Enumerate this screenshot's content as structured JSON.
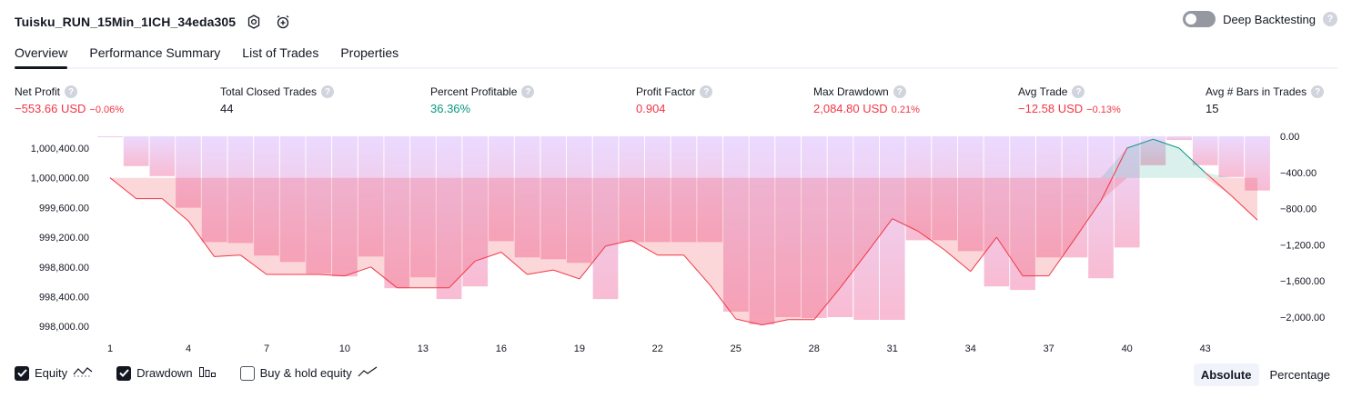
{
  "header": {
    "strategy_name": "Tuisku_RUN_15Min_1ICH_34eda305",
    "settings_icon": "gear-icon",
    "alert_icon": "alarm-clock-plus-icon",
    "deep_backtesting_label": "Deep Backtesting",
    "deep_backtesting_enabled": false,
    "help_glyph": "?"
  },
  "tabs": [
    {
      "label": "Overview",
      "active": true
    },
    {
      "label": "Performance Summary",
      "active": false
    },
    {
      "label": "List of Trades",
      "active": false
    },
    {
      "label": "Properties",
      "active": false
    }
  ],
  "stats": [
    {
      "label": "Net Profit",
      "value": "−553.66 USD",
      "pct": "−0.06%",
      "tone": "neg"
    },
    {
      "label": "Total Closed Trades",
      "value": "44",
      "pct": "",
      "tone": "none"
    },
    {
      "label": "Percent Profitable",
      "value": "36.36%",
      "pct": "",
      "tone": "pos"
    },
    {
      "label": "Profit Factor",
      "value": "0.904",
      "pct": "",
      "tone": "neg"
    },
    {
      "label": "Max Drawdown",
      "value": "2,084.80 USD",
      "pct": "0.21%",
      "tone": "neg"
    },
    {
      "label": "Avg Trade",
      "value": "−12.58 USD",
      "pct": "−0.13%",
      "tone": "neg"
    },
    {
      "label": "Avg # Bars in Trades",
      "value": "15",
      "pct": "",
      "tone": "none"
    }
  ],
  "chart_data": {
    "type": "line",
    "x_ticks": [
      "1",
      "4",
      "7",
      "10",
      "13",
      "16",
      "19",
      "22",
      "25",
      "28",
      "31",
      "34",
      "37",
      "40",
      "43"
    ],
    "y_left": {
      "ticks": [
        "1,000,400.00",
        "1,000,000.00",
        "999,600.00",
        "999,200.00",
        "998,800.00",
        "998,400.00",
        "998,000.00"
      ],
      "range": [
        997,
        840,
        1000600
      ]
    },
    "y_right": {
      "ticks": [
        "0.00",
        "−400.00",
        "−800.00",
        "−1,200.00",
        "−1,600.00",
        "−2,000.00"
      ],
      "range": [
        -2200,
        0
      ]
    },
    "equity_baseline": 1000000,
    "series": [
      {
        "name": "Equity",
        "color": "#f23645",
        "x": [
          1,
          2,
          3,
          4,
          5,
          6,
          7,
          8,
          9,
          10,
          11,
          12,
          13,
          14,
          15,
          16,
          17,
          18,
          19,
          20,
          21,
          22,
          23,
          24,
          25,
          26,
          27,
          28,
          29,
          30,
          31,
          32,
          33,
          34,
          35,
          36,
          37,
          38,
          39,
          40,
          41,
          42,
          43,
          44,
          45
        ],
        "values": [
          1000000,
          999720,
          999720,
          999420,
          998940,
          998960,
          998700,
          998700,
          998700,
          998680,
          998800,
          998520,
          998520,
          998520,
          998880,
          999000,
          998700,
          998760,
          998640,
          999080,
          999160,
          998960,
          998960,
          998560,
          998100,
          998020,
          998090,
          998090,
          998520,
          998980,
          999450,
          999280,
          999030,
          998740,
          999200,
          998680,
          998680,
          999180,
          999690,
          1000400,
          1000520,
          1000400,
          1000070,
          999760,
          999430
        ]
      },
      {
        "name": "Drawdown",
        "color": "#c9a8ff",
        "x": [
          1,
          2,
          3,
          4,
          5,
          6,
          7,
          8,
          9,
          10,
          11,
          12,
          13,
          14,
          15,
          16,
          17,
          18,
          19,
          20,
          21,
          22,
          23,
          24,
          25,
          26,
          27,
          28,
          29,
          30,
          31,
          32,
          33,
          34,
          35,
          36,
          37,
          38,
          39,
          40,
          41,
          42,
          43,
          44,
          45
        ],
        "values": [
          0,
          -330,
          -440,
          -790,
          -1170,
          -1180,
          -1320,
          -1390,
          -1520,
          -1550,
          -1330,
          -1680,
          -1560,
          -1800,
          -1660,
          -1160,
          -1340,
          -1360,
          -1400,
          -1800,
          -1170,
          -1170,
          -1170,
          -1170,
          -1940,
          -2080,
          -2000,
          -2010,
          -2000,
          -2030,
          -2030,
          -1150,
          -1150,
          -1270,
          -1660,
          -1700,
          -1340,
          -1340,
          -1570,
          -1230,
          -320,
          -40,
          -320,
          -450,
          -600
        ]
      }
    ]
  },
  "legend": [
    {
      "label": "Equity",
      "checked": true,
      "icon": "equity-line-icon"
    },
    {
      "label": "Drawdown",
      "checked": true,
      "icon": "drawdown-bars-icon"
    },
    {
      "label": "Buy & hold equity",
      "checked": false,
      "icon": "buy-hold-line-icon"
    }
  ],
  "mode_buttons": [
    {
      "label": "Absolute",
      "active": true
    },
    {
      "label": "Percentage",
      "active": false
    }
  ]
}
